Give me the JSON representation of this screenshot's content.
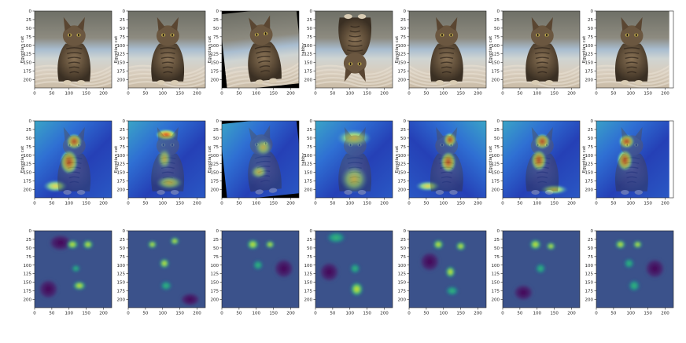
{
  "chart_data": {
    "type": "image_grid",
    "rows": [
      "image",
      "gradcam-overlay",
      "saliency-heatmap"
    ],
    "columns": 7,
    "image_size": [
      224,
      224
    ],
    "x_ticks": [
      "0",
      "50",
      "100",
      "150",
      "200"
    ],
    "y_ticks": [
      "0",
      "25",
      "50",
      "75",
      "100",
      "125",
      "150",
      "175",
      "200"
    ],
    "xlim": [
      0,
      224
    ],
    "ylim": [
      224,
      0
    ],
    "column_labels": [
      "",
      "Egyptian cat",
      "Egyptian cat",
      "tabby",
      "Egyptian cat",
      "Egyptian cat",
      "Egyptian cat"
    ],
    "row0_first_label": "Egyptian cat",
    "row1_first_label": "Egyptian cat",
    "transforms": [
      "original",
      "original",
      "rotated",
      "vertical-flip",
      "horizontal-flip",
      "original",
      "shifted"
    ],
    "colormaps": {
      "overlay": "jet",
      "saliency": "viridis"
    }
  }
}
